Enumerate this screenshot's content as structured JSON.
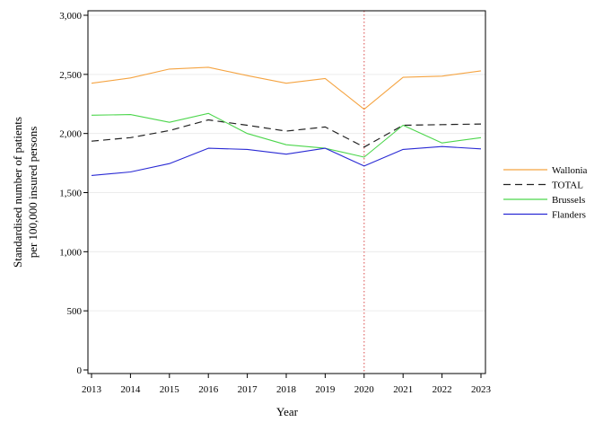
{
  "chart_data": {
    "type": "line",
    "xlabel": "Year",
    "ylabel_lines": [
      "Standardised number of patients",
      "per 100,000 insured persons"
    ],
    "x": [
      2013,
      2014,
      2015,
      2016,
      2017,
      2018,
      2019,
      2020,
      2021,
      2022,
      2023
    ],
    "x_tick_labels": [
      "2013",
      "2014",
      "2015",
      "2016",
      "2017",
      "2018",
      "2019",
      "2020",
      "2021",
      "2022",
      "2023"
    ],
    "ylim": [
      0,
      3000
    ],
    "y_ticks": [
      0,
      500,
      1000,
      1500,
      2000,
      2500,
      3000
    ],
    "y_tick_labels": [
      "0",
      "500",
      "1,000",
      "1,500",
      "2,000",
      "2,500",
      "3,000"
    ],
    "grid": "horizontal",
    "legend_position": "right",
    "reference_line": {
      "x": 2020,
      "color": "#e06666",
      "style": "dotted"
    },
    "series": [
      {
        "name": "Wallonia",
        "color": "#f5a442",
        "dash": "solid",
        "values": [
          2425,
          2470,
          2545,
          2560,
          2490,
          2425,
          2465,
          2205,
          2475,
          2485,
          2530
        ]
      },
      {
        "name": "TOTAL",
        "color": "#222222",
        "dash": "dashed",
        "values": [
          1935,
          1965,
          2025,
          2115,
          2070,
          2020,
          2055,
          1885,
          2070,
          2075,
          2080
        ]
      },
      {
        "name": "Brussels",
        "color": "#4cd64c",
        "dash": "solid",
        "values": [
          2155,
          2160,
          2095,
          2170,
          2000,
          1905,
          1875,
          1800,
          2070,
          1920,
          1965
        ]
      },
      {
        "name": "Flanders",
        "color": "#2a2ad4",
        "dash": "solid",
        "values": [
          1645,
          1675,
          1745,
          1875,
          1865,
          1825,
          1875,
          1725,
          1865,
          1890,
          1870
        ]
      }
    ]
  }
}
